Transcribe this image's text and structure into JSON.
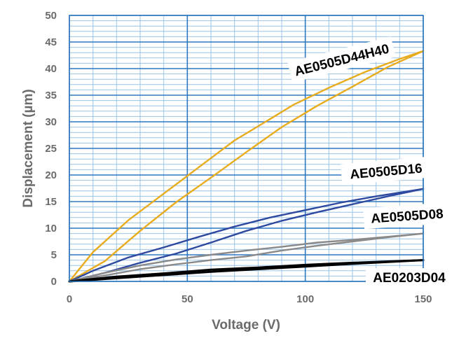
{
  "chart_data": {
    "type": "line",
    "title": "",
    "xlabel": "Voltage (V)",
    "ylabel": "Displacement (µm)",
    "xlim": [
      0,
      150
    ],
    "ylim": [
      0,
      50
    ],
    "xticks": [
      0,
      50,
      100,
      150
    ],
    "yticks": [
      0,
      5,
      10,
      15,
      20,
      25,
      30,
      35,
      40,
      45,
      50
    ],
    "grid": true,
    "series": [
      {
        "name": "AE0505D44H40",
        "color": "#e8ac1c",
        "upper": {
          "x": [
            0,
            10,
            25,
            40,
            55,
            70,
            85,
            95,
            110,
            125,
            140,
            150
          ],
          "y": [
            0,
            5.5,
            11.5,
            16.5,
            21.5,
            26.5,
            30.5,
            33.2,
            36.4,
            39.3,
            41.8,
            43.3
          ]
        },
        "lower": {
          "x": [
            0,
            15,
            30,
            45,
            60,
            75,
            90,
            105,
            120,
            135,
            150
          ],
          "y": [
            0,
            3.8,
            9.5,
            14.8,
            19.5,
            24.3,
            29.0,
            33.0,
            36.6,
            40.3,
            43.3
          ]
        }
      },
      {
        "name": "AE0505D16",
        "color": "#2e4aa0",
        "upper": {
          "x": [
            0,
            10,
            25,
            40,
            55,
            70,
            85,
            100,
            115,
            130,
            150
          ],
          "y": [
            0,
            2.0,
            4.5,
            6.4,
            8.4,
            10.3,
            12.0,
            13.4,
            14.8,
            16.0,
            17.4
          ]
        },
        "lower": {
          "x": [
            0,
            15,
            30,
            45,
            60,
            75,
            90,
            105,
            120,
            135,
            150
          ],
          "y": [
            0,
            1.6,
            3.5,
            5.2,
            7.3,
            9.5,
            11.4,
            13.0,
            14.5,
            16.0,
            17.4
          ]
        }
      },
      {
        "name": "AE0505D08",
        "color": "#8a8a8a",
        "upper": {
          "x": [
            0,
            15,
            30,
            45,
            60,
            75,
            90,
            105,
            120,
            135,
            150
          ],
          "y": [
            0,
            1.6,
            3.0,
            4.1,
            5.0,
            5.8,
            6.5,
            7.3,
            7.8,
            8.4,
            9.0
          ]
        },
        "lower": {
          "x": [
            0,
            15,
            30,
            45,
            60,
            75,
            90,
            105,
            120,
            135,
            150
          ],
          "y": [
            0,
            1.1,
            2.3,
            3.2,
            4.0,
            4.7,
            5.8,
            6.7,
            7.5,
            8.3,
            9.0
          ]
        }
      },
      {
        "name": "AE0203D04",
        "color": "#000000",
        "upper": {
          "x": [
            0,
            20,
            40,
            60,
            80,
            100,
            120,
            150
          ],
          "y": [
            0,
            0.9,
            1.5,
            2.2,
            2.6,
            3.1,
            3.5,
            4.0
          ]
        },
        "lower": {
          "x": [
            0,
            20,
            40,
            60,
            80,
            100,
            120,
            150
          ],
          "y": [
            0,
            0.6,
            1.2,
            1.8,
            2.3,
            2.8,
            3.3,
            4.0
          ]
        }
      }
    ]
  }
}
